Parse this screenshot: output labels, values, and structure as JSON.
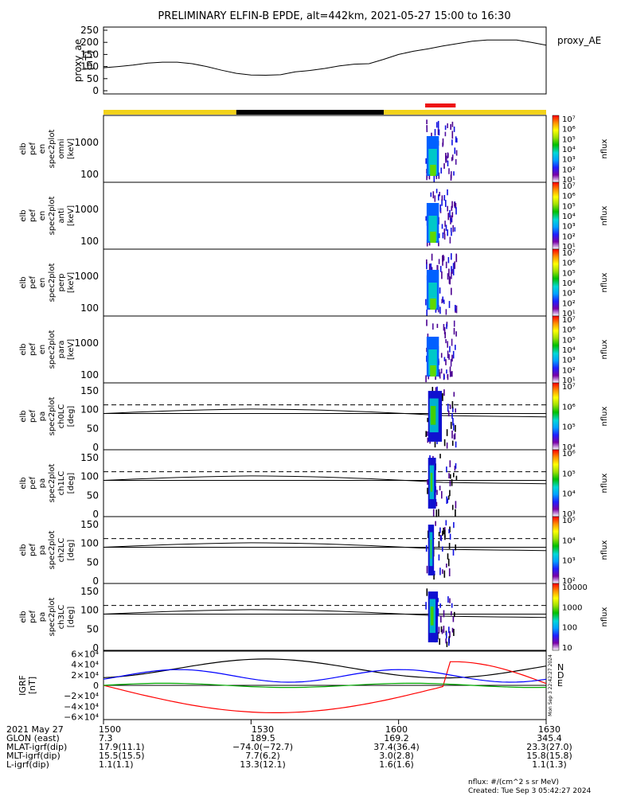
{
  "title": "PRELIMINARY ELFIN-B EPDE, alt=442km, 2021-05-27 15:00 to 16:30",
  "colors": {
    "orbit_day": "#f2d21a",
    "orbit_night": "#000000",
    "science_zone": "#ee1111",
    "bx": "#0000ff",
    "by": "#00aa00",
    "bz": "#ff0000"
  },
  "proxy_ae": {
    "ylabel": [
      "proxy_ae",
      "[nT]"
    ],
    "yticks": [
      "250",
      "200",
      "150",
      "100",
      "50",
      "0"
    ],
    "legend": "proxy_AE",
    "chart_data": {
      "type": "line",
      "x_minutes": [
        0,
        3,
        6,
        9,
        12,
        15,
        18,
        21,
        24,
        27,
        30,
        33,
        36,
        39,
        42,
        45,
        48,
        51,
        54,
        57,
        60,
        63,
        66,
        69,
        72,
        75,
        78,
        81,
        84,
        87,
        90
      ],
      "values": [
        95,
        100,
        106,
        114,
        118,
        118,
        112,
        100,
        85,
        72,
        65,
        64,
        66,
        78,
        84,
        92,
        103,
        110,
        112,
        130,
        150,
        163,
        173,
        185,
        195,
        205,
        210,
        210,
        210,
        200,
        188
      ],
      "ylim": [
        0,
        260
      ]
    }
  },
  "orbit_bar": [
    {
      "kind": "day",
      "start_min": 0,
      "end_min": 27
    },
    {
      "kind": "night",
      "start_min": 27,
      "end_min": 57
    },
    {
      "kind": "day",
      "start_min": 57,
      "end_min": 90
    }
  ],
  "science_zone": {
    "start_min": 65.4,
    "end_min": 71.6
  },
  "energy_panels": [
    {
      "ylabel": [
        "elb",
        "pef",
        "en",
        "spec2plot",
        "omni",
        "[keV]"
      ],
      "yticks": [
        "1000",
        "100"
      ]
    },
    {
      "ylabel": [
        "elb",
        "pef",
        "en",
        "spec2plot",
        "anti",
        "[keV]"
      ],
      "yticks": [
        "1000",
        "100"
      ]
    },
    {
      "ylabel": [
        "elb",
        "pef",
        "en",
        "spec2plot",
        "perp",
        "[keV]"
      ],
      "yticks": [
        "1000",
        "100"
      ]
    },
    {
      "ylabel": [
        "elb",
        "pef",
        "en",
        "spec2plot",
        "para",
        "[keV]"
      ],
      "yticks": [
        "1000",
        "100"
      ]
    }
  ],
  "pitch_panels": [
    {
      "ylabel": [
        "elb",
        "pef",
        "pa",
        "spec2plot",
        "ch0LC",
        "[deg]"
      ],
      "yticks": [
        "150",
        "100",
        "50",
        "0"
      ]
    },
    {
      "ylabel": [
        "elb",
        "pef",
        "pa",
        "spec2plot",
        "ch1LC",
        "[deg]"
      ],
      "yticks": [
        "150",
        "100",
        "50",
        "0"
      ]
    },
    {
      "ylabel": [
        "elb",
        "pef",
        "pa",
        "spec2plot",
        "ch2LC",
        "[deg]"
      ],
      "yticks": [
        "150",
        "100",
        "50",
        "0"
      ]
    },
    {
      "ylabel": [
        "elb",
        "pef",
        "pa",
        "spec2plot",
        "ch3LC",
        "[deg]"
      ],
      "yticks": [
        "150",
        "100",
        "50",
        "0"
      ]
    }
  ],
  "colorbars": [
    {
      "label": "nflux",
      "ticks": [
        "10⁷",
        "10⁶",
        "10⁵",
        "10⁴",
        "10³",
        "10²",
        "10¹"
      ]
    },
    {
      "label": "nflux",
      "ticks": [
        "10⁷",
        "10⁶",
        "10⁵",
        "10⁴",
        "10³",
        "10²",
        "10¹"
      ]
    },
    {
      "label": "nflux",
      "ticks": [
        "10⁷",
        "10⁶",
        "10⁵",
        "10⁴",
        "10³",
        "10²",
        "10¹"
      ]
    },
    {
      "label": "nflux",
      "ticks": [
        "10⁷",
        "10⁶",
        "10⁵",
        "10⁴",
        "10³",
        "10²",
        "10¹"
      ]
    },
    {
      "label": "nflux",
      "ticks": [
        "10⁷",
        "10⁶",
        "10⁵",
        "10⁴"
      ]
    },
    {
      "label": "nflux",
      "ticks": [
        "10⁶",
        "10⁵",
        "10⁴",
        "10³"
      ]
    },
    {
      "label": "nflux",
      "ticks": [
        "10⁵",
        "10⁴",
        "10³",
        "10²"
      ]
    },
    {
      "label": "nflux",
      "ticks": [
        "10000",
        "1000",
        "100",
        "10"
      ]
    }
  ],
  "igrf": {
    "ylabel": [
      "IGRF",
      "[nT]"
    ],
    "yticks": [
      "6×10⁴",
      "4×10⁴",
      "2×10⁴",
      "0",
      "−2×10⁴",
      "−4×10⁴",
      "−6×10⁴"
    ],
    "legend": [
      "N",
      "D",
      "E"
    ],
    "side_text": "Mon Sep  3 22:42:27 2024"
  },
  "xaxis": {
    "rows": [
      {
        "label": "2021 May 27",
        "values": [
          "1500",
          "1530",
          "1600",
          "1630"
        ]
      },
      {
        "label": "GLON (east)",
        "values": [
          "7.3",
          "189.5",
          "169.2",
          "345.4"
        ]
      },
      {
        "label": "MLAT-igrf(dip)",
        "values": [
          "17.9(11.1)",
          "−74.0(−72.7)",
          "37.4(36.4)",
          "23.3(27.0)"
        ]
      },
      {
        "label": "MLT-igrf(dip)",
        "values": [
          "15.5(15.5)",
          "7.7(6.2)",
          "3.0(2.8)",
          "15.8(15.8)"
        ]
      },
      {
        "label": "L-igrf(dip)",
        "values": [
          "1.1(1.1)",
          "13.3(12.1)",
          "1.6(1.6)",
          "1.1(1.3)"
        ]
      }
    ]
  },
  "footer": {
    "units": "nflux: #/(cm^2 s sr MeV)",
    "created": "Created: Tue Sep  3 05:42:27 2024"
  }
}
